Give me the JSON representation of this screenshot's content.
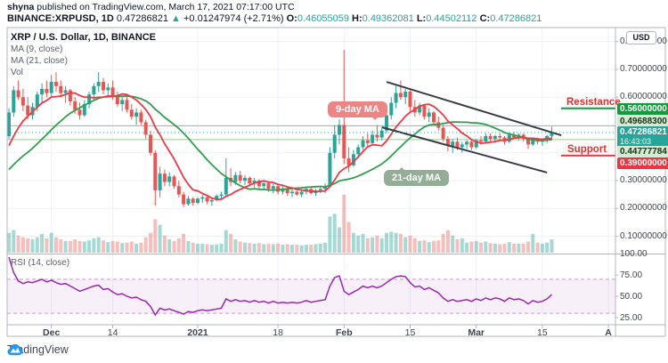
{
  "header": {
    "byline_user": "shyna",
    "byline_rest": " published on TradingView.com, March 17, 2021 07:17:00 UTC",
    "symbol": "BINANCE:XRPUSD, 1D",
    "last_price": "0.47286821",
    "arrow": "▲",
    "change": "+0.01247974 (+2.71%)",
    "o_label": "O:",
    "o_value": "0.46055059",
    "h_label": "H:",
    "h_value": "0.49362081",
    "l_label": "L:",
    "l_value": "0.44502112",
    "c_label": "C:",
    "c_value": "0.47286821"
  },
  "legend": {
    "title": "XRP / U.S. Dollar, 1D, BINANCE",
    "ma9": "MA (9, close)",
    "ma21": "MA (21, close)",
    "vol": "Vol"
  },
  "rsi_legend": "RSI (14, close)",
  "axis": {
    "currency_button": "USD",
    "price_ticks": [
      {
        "label": "0.80000000",
        "price": 0.8
      },
      {
        "label": "0.70000000",
        "price": 0.7
      },
      {
        "label": "0.60000000",
        "price": 0.6
      },
      {
        "label": "0.30000000",
        "price": 0.3
      },
      {
        "label": "0.20000000",
        "price": 0.2
      },
      {
        "label": "0.10000000",
        "price": 0.1
      }
    ],
    "rsi_ticks": [
      {
        "label": "100.00",
        "value": 100
      },
      {
        "label": "75.00",
        "value": 75
      },
      {
        "label": "50.00",
        "value": 50
      },
      {
        "label": "25.00",
        "value": 25
      }
    ],
    "time_ticks": [
      {
        "label": "Dec",
        "day": 9,
        "bold": true
      },
      {
        "label": "14",
        "day": 22,
        "bold": false
      },
      {
        "label": "2021",
        "day": 40,
        "bold": true
      },
      {
        "label": "18",
        "day": 57,
        "bold": false
      },
      {
        "label": "Feb",
        "day": 71,
        "bold": true
      },
      {
        "label": "15",
        "day": 85,
        "bold": false
      },
      {
        "label": "Mar",
        "day": 99,
        "bold": true
      },
      {
        "label": "15",
        "day": 113,
        "bold": false
      },
      {
        "label": "A",
        "day": 127,
        "bold": true
      }
    ]
  },
  "annotations": {
    "resistance_label": "Resistance",
    "support_label": "Support",
    "ma9_bubble": "9-day MA",
    "ma21_bubble": "21-day MA"
  },
  "badges": {
    "resistance": "0.56000000",
    "alert_upper": "0.49688300",
    "current_price": "0.47286821",
    "countdown": "16:43:03",
    "alert_lower": "0.44777784",
    "support": "0.39000000"
  },
  "footer": {
    "brand": "TradingView"
  },
  "colors": {
    "up": "#26a69a",
    "down": "#ef5350",
    "vol_up": "rgba(38,166,154,0.42)",
    "vol_down": "rgba(239,83,80,0.38)",
    "ma9": "#f23645",
    "ma21": "#2f9e4f",
    "rsi_line": "#9c27b0",
    "rsi_band_fill": "rgba(156,39,176,0.07)",
    "rsi_band_edge": "rgba(156,39,176,0.45)",
    "grid": "#eef1f8",
    "border": "#b2b5be",
    "alert_line": "#9fc694",
    "resistance_line": "#0f9d3a",
    "support_line": "#f23645",
    "current_line": "#26a69a",
    "trendline": "#3a3c45",
    "label_red": "#e03131",
    "logo_blue": "#2196f3"
  },
  "chart_data": {
    "type": "candlestick+volume+rsi",
    "title": "XRP / U.S. Dollar, 1D, BINANCE",
    "price_axis_visible_range": [
      0.06,
      0.85
    ],
    "rsi_axis_visible_range": [
      15,
      105
    ],
    "levels": {
      "resistance": 0.56,
      "support": 0.39,
      "alert_lines": [
        0.496883,
        0.44777784
      ],
      "current_price": 0.47286821
    },
    "channel": {
      "upper": {
        "day_a": 80,
        "price_a": 0.655,
        "day_b": 117,
        "price_b": 0.463
      },
      "lower": {
        "day_a": 79,
        "price_a": 0.492,
        "day_b": 114,
        "price_b": 0.329
      }
    },
    "seed_closes": [
      0.25,
      0.25,
      0.255,
      0.26,
      0.26,
      0.265,
      0.27,
      0.275,
      0.28,
      0.285,
      0.29,
      0.3,
      0.31,
      0.32,
      0.33,
      0.35,
      0.38,
      0.42,
      0.46,
      0.5,
      0.53
    ],
    "candles": [
      [
        0.46,
        0.56,
        0.45,
        0.545,
        0.3
      ],
      [
        0.545,
        0.64,
        0.53,
        0.625,
        0.35
      ],
      [
        0.625,
        0.66,
        0.59,
        0.6,
        0.25
      ],
      [
        0.6,
        0.63,
        0.55,
        0.57,
        0.22
      ],
      [
        0.57,
        0.6,
        0.52,
        0.535,
        0.2
      ],
      [
        0.535,
        0.58,
        0.52,
        0.565,
        0.18
      ],
      [
        0.565,
        0.62,
        0.55,
        0.61,
        0.22
      ],
      [
        0.61,
        0.65,
        0.58,
        0.63,
        0.28
      ],
      [
        0.63,
        0.66,
        0.6,
        0.615,
        0.2
      ],
      [
        0.615,
        0.68,
        0.6,
        0.655,
        0.3
      ],
      [
        0.655,
        0.69,
        0.62,
        0.64,
        0.22
      ],
      [
        0.64,
        0.66,
        0.6,
        0.615,
        0.18
      ],
      [
        0.615,
        0.64,
        0.58,
        0.625,
        0.15
      ],
      [
        0.625,
        0.63,
        0.57,
        0.585,
        0.15
      ],
      [
        0.585,
        0.6,
        0.54,
        0.555,
        0.18
      ],
      [
        0.555,
        0.58,
        0.52,
        0.535,
        0.15
      ],
      [
        0.535,
        0.59,
        0.53,
        0.575,
        0.14
      ],
      [
        0.575,
        0.62,
        0.56,
        0.61,
        0.16
      ],
      [
        0.61,
        0.65,
        0.59,
        0.64,
        0.2
      ],
      [
        0.64,
        0.69,
        0.62,
        0.655,
        0.22
      ],
      [
        0.655,
        0.67,
        0.61,
        0.625,
        0.16
      ],
      [
        0.625,
        0.65,
        0.6,
        0.635,
        0.13
      ],
      [
        0.635,
        0.66,
        0.59,
        0.6,
        0.15
      ],
      [
        0.6,
        0.62,
        0.565,
        0.575,
        0.14
      ],
      [
        0.575,
        0.6,
        0.55,
        0.59,
        0.11
      ],
      [
        0.59,
        0.6,
        0.545,
        0.555,
        0.12
      ],
      [
        0.555,
        0.575,
        0.52,
        0.53,
        0.14
      ],
      [
        0.53,
        0.56,
        0.5,
        0.545,
        0.1
      ],
      [
        0.545,
        0.555,
        0.5,
        0.51,
        0.12
      ],
      [
        0.51,
        0.52,
        0.45,
        0.465,
        0.22
      ],
      [
        0.465,
        0.48,
        0.39,
        0.4,
        0.3
      ],
      [
        0.4,
        0.41,
        0.21,
        0.265,
        0.55
      ],
      [
        0.265,
        0.35,
        0.24,
        0.325,
        0.45
      ],
      [
        0.325,
        0.34,
        0.28,
        0.295,
        0.25
      ],
      [
        0.295,
        0.33,
        0.28,
        0.315,
        0.18
      ],
      [
        0.315,
        0.32,
        0.27,
        0.28,
        0.15
      ],
      [
        0.28,
        0.3,
        0.24,
        0.25,
        0.2
      ],
      [
        0.25,
        0.26,
        0.205,
        0.215,
        0.28
      ],
      [
        0.215,
        0.245,
        0.21,
        0.235,
        0.15
      ],
      [
        0.235,
        0.24,
        0.21,
        0.22,
        0.12
      ],
      [
        0.22,
        0.24,
        0.215,
        0.235,
        0.1
      ],
      [
        0.235,
        0.25,
        0.22,
        0.24,
        0.1
      ],
      [
        0.24,
        0.245,
        0.215,
        0.225,
        0.09
      ],
      [
        0.225,
        0.235,
        0.21,
        0.23,
        0.08
      ],
      [
        0.23,
        0.25,
        0.225,
        0.245,
        0.09
      ],
      [
        0.245,
        0.26,
        0.23,
        0.25,
        0.1
      ],
      [
        0.25,
        0.38,
        0.245,
        0.31,
        0.35
      ],
      [
        0.31,
        0.345,
        0.28,
        0.295,
        0.28
      ],
      [
        0.295,
        0.33,
        0.285,
        0.32,
        0.18
      ],
      [
        0.32,
        0.335,
        0.29,
        0.3,
        0.14
      ],
      [
        0.3,
        0.32,
        0.285,
        0.31,
        0.12
      ],
      [
        0.31,
        0.315,
        0.28,
        0.29,
        0.11
      ],
      [
        0.29,
        0.31,
        0.275,
        0.3,
        0.1
      ],
      [
        0.3,
        0.305,
        0.27,
        0.28,
        0.11
      ],
      [
        0.28,
        0.3,
        0.265,
        0.29,
        0.09
      ],
      [
        0.29,
        0.295,
        0.26,
        0.27,
        0.1
      ],
      [
        0.27,
        0.29,
        0.255,
        0.28,
        0.09
      ],
      [
        0.28,
        0.285,
        0.25,
        0.26,
        0.1
      ],
      [
        0.26,
        0.28,
        0.25,
        0.27,
        0.08
      ],
      [
        0.27,
        0.275,
        0.245,
        0.255,
        0.09
      ],
      [
        0.255,
        0.27,
        0.24,
        0.26,
        0.08
      ],
      [
        0.26,
        0.27,
        0.245,
        0.25,
        0.08
      ],
      [
        0.25,
        0.265,
        0.24,
        0.26,
        0.07
      ],
      [
        0.26,
        0.275,
        0.25,
        0.27,
        0.08
      ],
      [
        0.27,
        0.275,
        0.25,
        0.255,
        0.08
      ],
      [
        0.255,
        0.27,
        0.245,
        0.265,
        0.09
      ],
      [
        0.265,
        0.28,
        0.255,
        0.27,
        0.1
      ],
      [
        0.27,
        0.29,
        0.255,
        0.28,
        0.12
      ],
      [
        0.28,
        0.42,
        0.275,
        0.4,
        0.6
      ],
      [
        0.4,
        0.5,
        0.38,
        0.465,
        0.65
      ],
      [
        0.465,
        0.52,
        0.43,
        0.5,
        0.4
      ],
      [
        0.5,
        0.77,
        0.36,
        0.38,
        1.0
      ],
      [
        0.38,
        0.42,
        0.33,
        0.355,
        0.5
      ],
      [
        0.355,
        0.41,
        0.35,
        0.395,
        0.3
      ],
      [
        0.395,
        0.43,
        0.38,
        0.42,
        0.25
      ],
      [
        0.42,
        0.46,
        0.41,
        0.445,
        0.28
      ],
      [
        0.445,
        0.47,
        0.42,
        0.435,
        0.2
      ],
      [
        0.435,
        0.48,
        0.43,
        0.465,
        0.22
      ],
      [
        0.465,
        0.5,
        0.44,
        0.455,
        0.25
      ],
      [
        0.455,
        0.49,
        0.445,
        0.48,
        0.2
      ],
      [
        0.48,
        0.55,
        0.47,
        0.535,
        0.3
      ],
      [
        0.535,
        0.6,
        0.52,
        0.58,
        0.32
      ],
      [
        0.58,
        0.64,
        0.56,
        0.615,
        0.3
      ],
      [
        0.615,
        0.66,
        0.59,
        0.6,
        0.28
      ],
      [
        0.6,
        0.63,
        0.575,
        0.62,
        0.22
      ],
      [
        0.62,
        0.625,
        0.55,
        0.565,
        0.25
      ],
      [
        0.565,
        0.59,
        0.53,
        0.545,
        0.2
      ],
      [
        0.545,
        0.58,
        0.535,
        0.57,
        0.15
      ],
      [
        0.57,
        0.575,
        0.52,
        0.53,
        0.16
      ],
      [
        0.53,
        0.56,
        0.51,
        0.545,
        0.13
      ],
      [
        0.545,
        0.55,
        0.5,
        0.51,
        0.15
      ],
      [
        0.51,
        0.53,
        0.48,
        0.49,
        0.16
      ],
      [
        0.49,
        0.5,
        0.44,
        0.45,
        0.28
      ],
      [
        0.45,
        0.46,
        0.405,
        0.425,
        0.35
      ],
      [
        0.425,
        0.45,
        0.4,
        0.44,
        0.25
      ],
      [
        0.44,
        0.455,
        0.41,
        0.42,
        0.18
      ],
      [
        0.42,
        0.44,
        0.4,
        0.43,
        0.2
      ],
      [
        0.43,
        0.445,
        0.415,
        0.44,
        0.12
      ],
      [
        0.44,
        0.445,
        0.41,
        0.42,
        0.14
      ],
      [
        0.42,
        0.45,
        0.415,
        0.445,
        0.15
      ],
      [
        0.445,
        0.46,
        0.43,
        0.44,
        0.12
      ],
      [
        0.44,
        0.47,
        0.435,
        0.46,
        0.14
      ],
      [
        0.46,
        0.47,
        0.44,
        0.45,
        0.11
      ],
      [
        0.45,
        0.465,
        0.435,
        0.46,
        0.1
      ],
      [
        0.46,
        0.47,
        0.445,
        0.455,
        0.09
      ],
      [
        0.455,
        0.46,
        0.43,
        0.44,
        0.1
      ],
      [
        0.44,
        0.47,
        0.435,
        0.465,
        0.13
      ],
      [
        0.465,
        0.475,
        0.45,
        0.455,
        0.1
      ],
      [
        0.455,
        0.47,
        0.445,
        0.465,
        0.1
      ],
      [
        0.465,
        0.47,
        0.44,
        0.45,
        0.1
      ],
      [
        0.45,
        0.455,
        0.415,
        0.43,
        0.14
      ],
      [
        0.43,
        0.455,
        0.425,
        0.45,
        0.28
      ],
      [
        0.45,
        0.455,
        0.43,
        0.44,
        0.12
      ],
      [
        0.44,
        0.45,
        0.425,
        0.445,
        0.1
      ],
      [
        0.445,
        0.465,
        0.435,
        0.4605,
        0.12
      ],
      [
        0.4606,
        0.4936,
        0.445,
        0.4729,
        0.18
      ]
    ],
    "rsi": [
      96,
      78,
      68,
      65,
      67,
      66,
      68,
      70,
      67,
      69,
      66,
      64,
      65,
      62,
      59,
      56,
      58,
      60,
      62,
      63,
      58,
      59,
      55,
      52,
      53,
      50,
      48,
      49,
      46,
      44,
      38,
      28,
      36,
      34,
      35,
      33,
      31,
      29,
      32,
      31,
      33,
      34,
      33,
      34,
      35,
      36,
      47,
      44,
      46,
      44,
      45,
      43,
      45,
      43,
      44,
      42,
      44,
      42,
      43,
      42,
      43,
      42,
      43,
      45,
      43,
      44,
      45,
      46,
      62,
      72,
      74,
      56,
      52,
      55,
      58,
      62,
      60,
      62,
      60,
      62,
      66,
      70,
      73,
      74,
      73,
      66,
      61,
      62,
      58,
      60,
      57,
      54,
      48,
      44,
      46,
      44,
      45,
      46,
      44,
      47,
      45,
      48,
      46,
      48,
      47,
      44,
      48,
      46,
      47,
      45,
      41,
      45,
      43,
      44,
      47,
      52
    ],
    "rsi_bands": [
      30,
      70
    ],
    "grid_on": true
  }
}
